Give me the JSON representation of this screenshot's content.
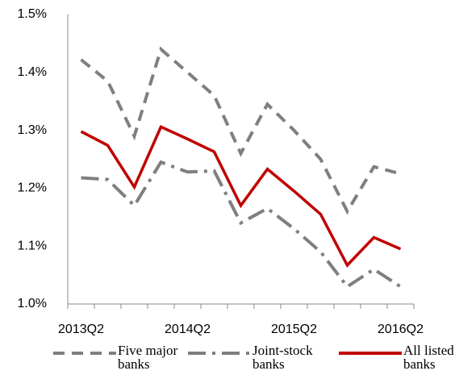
{
  "chart_data": {
    "type": "line",
    "categories": [
      "2013Q2",
      null,
      null,
      null,
      "2014Q2",
      null,
      null,
      null,
      "2015Q2",
      null,
      null,
      null,
      "2016Q2"
    ],
    "series": [
      {
        "name": "Five major banks",
        "color": "#7f7f7f",
        "dash": "dash",
        "values": [
          1.422,
          1.385,
          1.29,
          1.44,
          1.4,
          1.36,
          1.26,
          1.345,
          1.3,
          1.25,
          1.16,
          1.237,
          1.225
        ]
      },
      {
        "name": "Joint-stock banks",
        "color": "#7f7f7f",
        "dash": "dashdot",
        "values": [
          1.218,
          1.215,
          1.17,
          1.245,
          1.228,
          1.23,
          1.14,
          1.165,
          1.13,
          1.09,
          1.03,
          1.06,
          1.03
        ]
      },
      {
        "name": "All listed banks",
        "color": "#c00000",
        "dash": "solid",
        "values": [
          1.298,
          1.274,
          1.202,
          1.306,
          1.285,
          1.263,
          1.17,
          1.233,
          1.195,
          1.155,
          1.067,
          1.115,
          1.095
        ]
      }
    ],
    "ylim": [
      1.0,
      1.5
    ],
    "yticks": [
      {
        "value": 1.0,
        "label": "1.0%"
      },
      {
        "value": 1.1,
        "label": "1.1%"
      },
      {
        "value": 1.2,
        "label": "1.2%"
      },
      {
        "value": 1.3,
        "label": "1.3%"
      },
      {
        "value": 1.4,
        "label": "1.4%"
      },
      {
        "value": 1.5,
        "label": "1.5%"
      }
    ],
    "grid": false
  }
}
